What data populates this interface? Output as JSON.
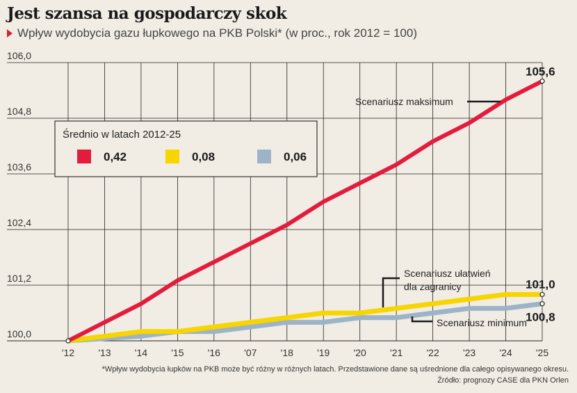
{
  "title": "Jest szansa na gospodarczy skok",
  "subtitle": "Wpływ wydobycia gazu łupkowego na PKB Polski* (w proc., rok 2012 = 100)",
  "footnote": "*Wpływ wydobycia łupków na PKB może być różny w różnych latach. Przedstawione dane są uśrednione dla całego opisywanego okresu.",
  "source": "Źródło: prognozy CASE dla PKN Orlen",
  "icons": {
    "subtitle_marker": "triangle-right-icon"
  },
  "colors": {
    "background": "#f1ede4",
    "max": "#e31c3d",
    "zagr": "#f7d500",
    "min": "#9db4c8",
    "grid": "#222222"
  },
  "legend": {
    "title": "Średnio w latach 2012-25",
    "items": [
      {
        "value": "0,42",
        "color": "#e31c3d"
      },
      {
        "value": "0,08",
        "color": "#f7d500"
      },
      {
        "value": "0,06",
        "color": "#9db4c8"
      }
    ]
  },
  "chart_data": {
    "type": "line",
    "title": "Jest szansa na gospodarczy skok",
    "subtitle": "Wpływ wydobycia gazu łupkowego na PKB Polski* (w proc., rok 2012 = 100)",
    "categories": [
      "'12",
      "'13",
      "'14",
      "'15",
      "'16",
      "'07",
      "'18",
      "'19",
      "'20",
      "'21",
      "'22",
      "'23",
      "'24",
      "'25"
    ],
    "ylim": [
      100.0,
      106.0
    ],
    "yticks": [
      100.0,
      101.2,
      102.4,
      103.6,
      104.8,
      106.0
    ],
    "ytick_labels": [
      "100,0",
      "101,2",
      "102,4",
      "103,6",
      "104,8",
      "106,0"
    ],
    "grid": "vertical-and-horizontal",
    "series": [
      {
        "key": "max",
        "name": "Scenariusz maksimum",
        "color": "#e31c3d",
        "values": [
          100.0,
          100.4,
          100.8,
          101.3,
          101.7,
          102.1,
          102.5,
          103.0,
          103.4,
          103.8,
          104.3,
          104.7,
          105.2,
          105.6
        ]
      },
      {
        "key": "zagr",
        "name": "Scenariusz ułatwień dla zagranicy",
        "color": "#f7d500",
        "values": [
          100.0,
          100.1,
          100.2,
          100.2,
          100.3,
          100.4,
          100.5,
          100.6,
          100.6,
          100.7,
          100.8,
          100.9,
          101.0,
          101.0
        ]
      },
      {
        "key": "min",
        "name": "Scenariusz minimum",
        "color": "#9db4c8",
        "values": [
          100.0,
          100.05,
          100.1,
          100.2,
          100.2,
          100.3,
          100.4,
          100.4,
          100.5,
          100.5,
          100.6,
          100.7,
          100.7,
          100.8
        ]
      }
    ],
    "end_labels": [
      {
        "series": "max",
        "text": "105,6"
      },
      {
        "series": "zagr",
        "text": "101,0"
      },
      {
        "series": "min",
        "text": "100,8"
      }
    ],
    "annotations": [
      {
        "series": "max",
        "lines": [
          "Scenariusz maksimum"
        ]
      },
      {
        "series": "zagr",
        "lines": [
          "Scenariusz ułatwień",
          "dla zagranicy"
        ]
      },
      {
        "series": "min",
        "lines": [
          "Scenariusz minimum"
        ]
      }
    ]
  }
}
